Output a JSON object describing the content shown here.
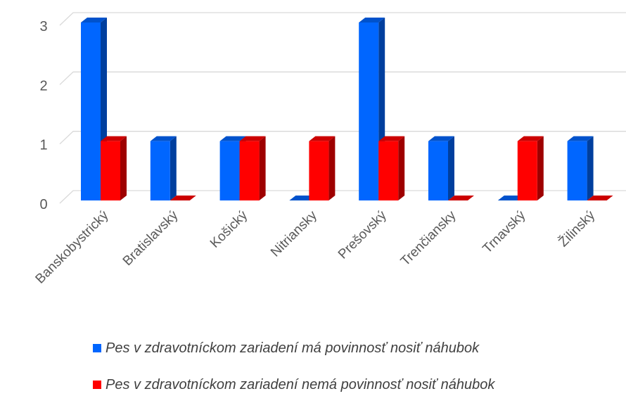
{
  "chart_data": {
    "type": "bar3d",
    "categories": [
      "Banskobystrický",
      "Bratislavský",
      "Košický",
      "Nitriansky",
      "Prešovský",
      "Trenčiansky",
      "Trnavský",
      "Žilinský"
    ],
    "series": [
      {
        "name": "Pes v zdravotníckom zariadení má povinnosť nosiť náhubok",
        "color": "#0066ff",
        "values": [
          3,
          1,
          1,
          0,
          3,
          1,
          0,
          1
        ]
      },
      {
        "name": "Pes v zdravotníckom zariadení nemá povinnosť nosiť náhubok",
        "color": "#ff0000",
        "values": [
          1,
          0,
          1,
          1,
          1,
          0,
          1,
          0
        ]
      }
    ],
    "ylim": [
      0,
      3
    ],
    "yticks": [
      0,
      1,
      2,
      3
    ],
    "grid": true,
    "legend": "bottom"
  }
}
